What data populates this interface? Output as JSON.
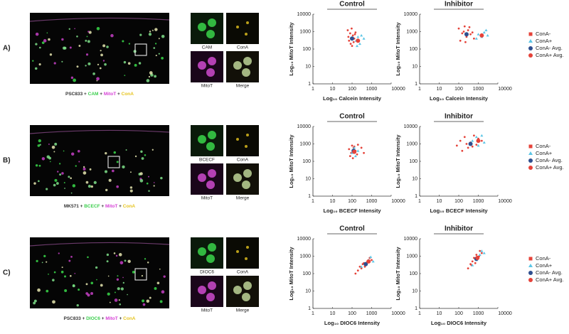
{
  "panels": [
    {
      "label": "A)",
      "caption": [
        "PSC833 + ",
        "CAM",
        " + ",
        "MitoT",
        " + ",
        "ConA"
      ],
      "tiles": [
        "CAM",
        "ConA",
        "MitoT",
        "Merge"
      ]
    },
    {
      "label": "B)",
      "caption": [
        "MK571 + ",
        "BCECF",
        " + ",
        "MitoT",
        " + ",
        "ConA"
      ],
      "tiles": [
        "BCECF",
        "ConA",
        "MitoT",
        "Merge"
      ]
    },
    {
      "label": "C)",
      "caption": [
        "PSC833 + ",
        "DIOC6",
        " + ",
        "MitoT",
        " + ",
        "ConA"
      ],
      "tiles": [
        "DIOC6",
        "ConA",
        "MitoT",
        "Merge"
      ]
    }
  ],
  "chart_data": [
    {
      "type": "scatter",
      "title": "Control",
      "xlabel": "Log₁₀ Calcein Intensity",
      "ylabel": "Log₁₀ MitoT Intensity",
      "xscale": "log",
      "yscale": "log",
      "xlim": [
        1,
        10000
      ],
      "ylim": [
        1,
        10000
      ],
      "xticks": [
        1,
        10,
        100,
        1000,
        10000
      ],
      "yticks": [
        1,
        10,
        100,
        1000,
        10000
      ],
      "series": [
        {
          "color": "#e5433a",
          "x": [
            60,
            80,
            95,
            110,
            70,
            130,
            150,
            85,
            100,
            120,
            65,
            140
          ],
          "values": [
            1200,
            800,
            1500,
            600,
            300,
            400,
            900,
            200,
            150,
            250,
            500,
            700
          ]
        },
        {
          "color": "#5cc6e6",
          "x": [
            160,
            200,
            250,
            300,
            180,
            400
          ],
          "values": [
            300,
            500,
            200,
            600,
            150,
            400
          ]
        },
        {
          "color": "#2f4f8f",
          "x": [
            100
          ],
          "values": [
            400
          ]
        },
        {
          "color": "#e5433a",
          "x": [
            200
          ],
          "values": [
            300
          ]
        }
      ]
    },
    {
      "type": "scatter",
      "title": "Inhibitor",
      "xlabel": "Log₁₀ Calcein Intensity",
      "ylabel": "Log₁₀ MitoT Intensity",
      "xscale": "log",
      "yscale": "log",
      "xlim": [
        1,
        10000
      ],
      "ylim": [
        1,
        10000
      ],
      "xticks": [
        1,
        10,
        100,
        1000,
        10000
      ],
      "yticks": [
        1,
        10,
        100,
        1000,
        10000
      ],
      "legend": "right",
      "series": [
        {
          "name": "ConA-",
          "color": "#e5433a",
          "x": [
            100,
            150,
            200,
            250,
            300,
            400,
            500,
            600,
            120,
            180,
            350,
            220
          ],
          "values": [
            1500,
            800,
            2000,
            500,
            1200,
            700,
            900,
            400,
            300,
            1000,
            1800,
            250
          ]
        },
        {
          "name": "ConA+",
          "color": "#5cc6e6",
          "x": [
            800,
            1000,
            1500,
            2000,
            2500,
            3000
          ],
          "values": [
            400,
            700,
            500,
            900,
            1200,
            600
          ]
        },
        {
          "name": "ConA-  Avg.",
          "color": "#2f4f8f",
          "x": [
            250
          ],
          "values": [
            700
          ]
        },
        {
          "name": "ConA+ Avg.",
          "color": "#e5433a",
          "x": [
            1500
          ],
          "values": [
            600
          ]
        }
      ]
    },
    {
      "type": "scatter",
      "title": "Control",
      "xlabel": "Log₁₀ BCECF Intensity",
      "ylabel": "Log₁₀ MitoT Intensity",
      "xscale": "log",
      "yscale": "log",
      "xlim": [
        1,
        10000
      ],
      "ylim": [
        1,
        10000
      ],
      "xticks": [
        1,
        10,
        100,
        1000,
        10000
      ],
      "yticks": [
        1,
        10,
        100,
        1000,
        10000
      ],
      "series": [
        {
          "color": "#e5433a",
          "x": [
            70,
            90,
            100,
            120,
            150,
            200,
            80,
            110,
            130,
            180,
            300,
            400
          ],
          "values": [
            500,
            300,
            800,
            600,
            400,
            900,
            200,
            150,
            700,
            250,
            600,
            300
          ]
        },
        {
          "color": "#5cc6e6",
          "x": [
            100,
            120,
            150,
            200,
            130
          ],
          "values": [
            300,
            500,
            200,
            400,
            600
          ]
        },
        {
          "color": "#2f4f8f",
          "x": [
            120
          ],
          "values": [
            400
          ]
        },
        {
          "color": "#e5433a",
          "x": [
            130
          ],
          "values": [
            350
          ]
        }
      ]
    },
    {
      "type": "scatter",
      "title": "Inhibitor",
      "xlabel": "Log₁₀ BCECF Intensity",
      "ylabel": "Log₁₀ MitoT Intensity",
      "xscale": "log",
      "yscale": "log",
      "xlim": [
        1,
        10000
      ],
      "ylim": [
        1,
        10000
      ],
      "xticks": [
        1,
        10,
        100,
        1000,
        10000
      ],
      "yticks": [
        1,
        10,
        100,
        1000,
        10000
      ],
      "legend": "right",
      "series": [
        {
          "name": "ConA-",
          "color": "#e5433a",
          "x": [
            80,
            120,
            200,
            300,
            400,
            600,
            800,
            1000,
            1500,
            150,
            500,
            250
          ],
          "values": [
            800,
            1500,
            2500,
            600,
            1200,
            3000,
            900,
            2000,
            1500,
            400,
            700,
            1000
          ]
        },
        {
          "name": "ConA+",
          "color": "#5cc6e6",
          "x": [
            500,
            800,
            1000,
            1500,
            2000
          ],
          "values": [
            1500,
            2500,
            800,
            3000,
            1200
          ]
        },
        {
          "name": "ConA-  Avg.",
          "color": "#2f4f8f",
          "x": [
            400
          ],
          "values": [
            1000
          ]
        },
        {
          "name": "ConA+ Avg.",
          "color": "#e5433a",
          "x": [
            1000
          ],
          "values": [
            1500
          ]
        }
      ]
    },
    {
      "type": "scatter",
      "title": "Control",
      "xlabel": "Log₁₀ DIOC6 Intensity",
      "ylabel": "Log₁₀ MitoT Intensity",
      "xscale": "log",
      "yscale": "log",
      "xlim": [
        1,
        10000
      ],
      "ylim": [
        1,
        10000
      ],
      "xticks": [
        1,
        10,
        100,
        1000,
        10000
      ],
      "yticks": [
        1,
        10,
        100,
        1000,
        10000
      ],
      "series": [
        {
          "color": "#e5433a",
          "x": [
            150,
            200,
            250,
            300,
            400,
            500,
            600,
            800,
            1000,
            350,
            700,
            450
          ],
          "values": [
            100,
            150,
            250,
            200,
            400,
            300,
            500,
            800,
            600,
            350,
            450,
            250
          ]
        },
        {
          "color": "#5cc6e6",
          "x": [
            300,
            500,
            700,
            900,
            1200
          ],
          "values": [
            250,
            400,
            600,
            900,
            500
          ]
        },
        {
          "color": "#2f4f8f",
          "x": [
            500
          ],
          "values": [
            350
          ]
        },
        {
          "color": "#e5433a",
          "x": [
            700
          ],
          "values": [
            500
          ]
        }
      ]
    },
    {
      "type": "scatter",
      "title": "Inhibitor",
      "xlabel": "Log₁₀ DIOC6 Intensity",
      "ylabel": "Log₁₀ MitoT Intensity",
      "xscale": "log",
      "yscale": "log",
      "xlim": [
        1,
        10000
      ],
      "ylim": [
        1,
        10000
      ],
      "xticks": [
        1,
        10,
        100,
        1000,
        10000
      ],
      "yticks": [
        1,
        10,
        100,
        1000,
        10000
      ],
      "legend": "right",
      "series": [
        {
          "name": "ConA-",
          "color": "#e5433a",
          "x": [
            300,
            400,
            500,
            600,
            800,
            1000,
            1200,
            1500,
            700,
            900,
            450,
            1100
          ],
          "values": [
            200,
            350,
            500,
            800,
            1200,
            900,
            2000,
            1500,
            400,
            700,
            300,
            1000
          ]
        },
        {
          "name": "ConA+",
          "color": "#5cc6e6",
          "x": [
            500,
            800,
            1200,
            1500,
            2000
          ],
          "values": [
            300,
            600,
            1200,
            2000,
            1500
          ]
        },
        {
          "name": "ConA-  Avg.",
          "color": "#2f4f8f",
          "x": [
            800
          ],
          "values": [
            700
          ]
        },
        {
          "name": "ConA+ Avg.",
          "color": "#e5433a",
          "x": [
            900
          ],
          "values": [
            800
          ]
        }
      ]
    }
  ]
}
